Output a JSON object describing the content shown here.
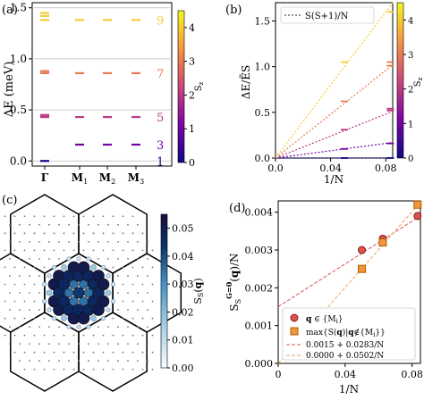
{
  "chart_data": [
    {
      "panel_label": "(a)",
      "type": "scatter",
      "ylabel": "ΔE (meV)",
      "ylim": [
        -0.05,
        1.55
      ],
      "yticks": [
        "0.0",
        "0.5",
        "1.0",
        "1.5"
      ],
      "categories": [
        "Γ",
        "M",
        "M",
        "M"
      ],
      "category_subscripts": [
        "",
        "1",
        "2",
        "3"
      ],
      "colorbar": {
        "label": "S_z",
        "range": [
          0,
          4.5
        ],
        "ticks": [
          "0",
          "1",
          "2",
          "3",
          "4"
        ]
      },
      "levels": [
        {
          "S_label": "1",
          "energy": 0.0,
          "S": 0,
          "positions": [
            "Γ"
          ]
        },
        {
          "S_label": "3",
          "energy": 0.16,
          "S": 1,
          "positions": [
            "M1",
            "M2",
            "M3"
          ]
        },
        {
          "S_label": "5",
          "energy": 0.43,
          "S": 2,
          "positions": [
            "Γ",
            "M1",
            "M2",
            "M3"
          ]
        },
        {
          "S_label": "5",
          "energy": 0.45,
          "S": 2,
          "positions": [
            "Γ"
          ]
        },
        {
          "S_label": "7",
          "energy": 0.86,
          "S": 3,
          "positions": [
            "Γ",
            "M1",
            "M2",
            "M3"
          ]
        },
        {
          "S_label": "7",
          "energy": 0.88,
          "S": 3,
          "positions": [
            "Γ"
          ]
        },
        {
          "S_label": "9",
          "energy": 1.38,
          "S": 4,
          "positions": [
            "Γ",
            "M1",
            "M2",
            "M3"
          ]
        },
        {
          "S_label": "9",
          "energy": 1.42,
          "S": 4,
          "positions": [
            "Γ"
          ]
        },
        {
          "S_label": "9",
          "energy": 1.45,
          "S": 4,
          "positions": [
            "Γ"
          ]
        }
      ]
    },
    {
      "panel_label": "(b)",
      "type": "line",
      "xlabel": "1/N",
      "ylabel": "ΔE/ẼS",
      "xlim": [
        0,
        0.085
      ],
      "ylim": [
        0,
        1.7
      ],
      "xticks": [
        "0.0",
        "0.04",
        "0.08"
      ],
      "yticks": [
        "0.0",
        "0.5",
        "1.0",
        "1.5"
      ],
      "legend": "S(S+1)/N",
      "colorbar": {
        "label": "S_z",
        "range": [
          0,
          4.5
        ],
        "ticks": [
          "0",
          "1",
          "2",
          "3",
          "4"
        ]
      },
      "series": [
        {
          "S": 0,
          "slope": 0,
          "points": [
            [
              0.05,
              0.0
            ],
            [
              0.0833,
              0.0
            ]
          ]
        },
        {
          "S": 1,
          "slope": 2,
          "points": [
            [
              0.05,
              0.1
            ],
            [
              0.0833,
              0.16
            ]
          ]
        },
        {
          "S": 2,
          "slope": 6,
          "points": [
            [
              0.05,
              0.31
            ],
            [
              0.0833,
              0.52
            ]
          ]
        },
        {
          "S": 3,
          "slope": 12,
          "points": [
            [
              0.05,
              0.62
            ],
            [
              0.0833,
              1.05
            ]
          ]
        },
        {
          "S": 4,
          "slope": 20,
          "points": [
            [
              0.05,
              1.05
            ],
            [
              0.0833,
              1.6
            ]
          ]
        }
      ],
      "extra_points": [
        {
          "S": 4,
          "x": 0.05,
          "y": 1.49
        },
        {
          "S": 2,
          "x": 0.0833,
          "y": 0.54
        },
        {
          "S": 3,
          "x": 0.0833,
          "y": 1.01
        }
      ]
    },
    {
      "panel_label": "(c)",
      "type": "heatmap",
      "colorbar_label": "S_S(q)",
      "colorbar_range": [
        0,
        0.055
      ],
      "colorbar_ticks": [
        "0.00",
        "0.01",
        "0.02",
        "0.03",
        "0.04",
        "0.05"
      ],
      "description_values": {
        "outer_ring": 0.05,
        "inner_hexagon": 0.045,
        "center": 0.04
      }
    },
    {
      "panel_label": "(d)",
      "type": "scatter",
      "xlabel": "1/N",
      "ylabel": "S_S^{G=0}(q)/N",
      "xlim": [
        0,
        0.085
      ],
      "ylim": [
        0,
        0.0043
      ],
      "xticks": [
        "0",
        "0.04",
        "0.08"
      ],
      "yticks": [
        "0.000",
        "0.001",
        "0.002",
        "0.003",
        "0.004"
      ],
      "series": [
        {
          "name": "q ∈ {M_i}",
          "marker": "circle",
          "color": "#d9534f",
          "points": [
            [
              0.05,
              0.003
            ],
            [
              0.0625,
              0.0033
            ],
            [
              0.0833,
              0.0039
            ]
          ]
        },
        {
          "name": "max{S(q)|q∉{M_i}}",
          "marker": "square",
          "color": "#f0963c",
          "points": [
            [
              0.05,
              0.0025
            ],
            [
              0.0625,
              0.0032
            ],
            [
              0.0833,
              0.0042
            ]
          ]
        }
      ],
      "fits": [
        {
          "name": "0.0015 + 0.0283/N",
          "intercept": 0.0015,
          "slope": 0.0283,
          "color": "#d9534f"
        },
        {
          "name": "0.0000 + 0.0502/N",
          "intercept": 0.0,
          "slope": 0.0502,
          "color": "#f0a45c"
        }
      ]
    }
  ]
}
